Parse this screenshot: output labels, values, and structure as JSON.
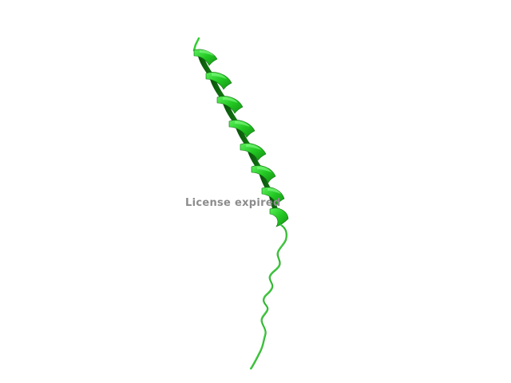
{
  "viewer": {
    "watermark_text": "License expired",
    "colors": {
      "background": "#ffffff",
      "ribbon_light": "#3ee03e",
      "ribbon_mid": "#1fc21f",
      "ribbon_dark": "#0b5e0b",
      "coil": "#3ccc3c",
      "watermark": "#8c8c8c"
    }
  }
}
